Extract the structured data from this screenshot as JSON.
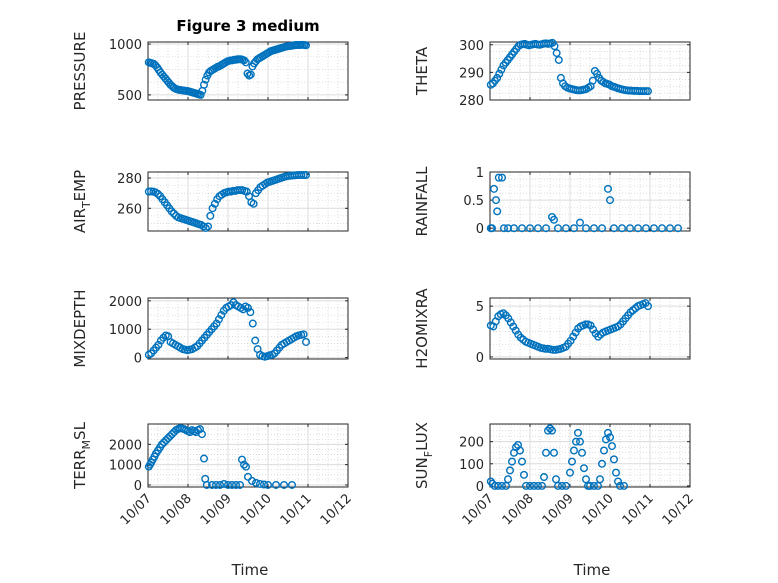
{
  "figure_title": "Figure 3 medium",
  "colors": {
    "marker": "#0072BD",
    "axis": "#262626",
    "grid": "#dcdcdc",
    "minor_grid": "#c8c8c8"
  },
  "chart_data": [
    {
      "type": "scatter",
      "id": "pressure",
      "title": "Figure 3 medium",
      "ylabel": "PRESSURE",
      "xlim": [
        0,
        5
      ],
      "ylim": [
        450,
        1020
      ],
      "yticks": [
        500,
        1000
      ],
      "y": [
        820,
        815,
        810,
        805,
        790,
        770,
        745,
        720,
        700,
        680,
        660,
        640,
        620,
        600,
        585,
        570,
        560,
        555,
        550,
        548,
        545,
        543,
        540,
        538,
        535,
        530,
        525,
        520,
        515,
        510,
        505,
        500,
        540,
        600,
        650,
        690,
        720,
        735,
        745,
        755,
        765,
        775,
        780,
        790,
        800,
        810,
        820,
        830,
        835,
        840,
        840,
        845,
        845,
        850,
        850,
        850,
        845,
        840,
        820,
        710,
        690,
        700,
        780,
        810,
        830,
        850,
        860,
        870,
        880,
        890,
        900,
        910,
        920,
        930,
        935,
        940,
        945,
        950,
        955,
        960,
        965,
        970,
        975,
        978,
        980,
        982,
        985,
        988,
        990,
        990,
        990,
        992,
        992,
        990,
        988
      ]
    },
    {
      "type": "scatter",
      "id": "theta",
      "ylabel": "THETA",
      "xlim": [
        0,
        5
      ],
      "ylim": [
        280,
        301
      ],
      "yticks": [
        280,
        290,
        300
      ],
      "y": [
        285.5,
        286,
        287,
        288,
        289.5,
        291,
        292.5,
        293.5,
        294.5,
        295.5,
        296.5,
        297.5,
        298.5,
        299.5,
        300,
        300.2,
        300.3,
        300,
        299.8,
        300,
        300.2,
        300.3,
        300.1,
        300,
        300.2,
        300.4,
        300.5,
        300.3,
        300.5,
        300.7,
        299.5,
        297,
        294.5,
        288,
        286,
        285,
        284.5,
        284.2,
        284,
        283.8,
        283.6,
        283.5,
        283.5,
        283.6,
        283.8,
        284,
        284.5,
        285,
        287,
        290.5,
        289.5,
        288,
        287,
        286.5,
        286,
        285.8,
        285.5,
        285,
        284.8,
        284.5,
        284.2,
        284,
        283.8,
        283.6,
        283.5,
        283.4,
        283.4,
        283.3,
        283.3,
        283.3,
        283.2,
        283.2,
        283.2,
        283.2,
        283.2
      ]
    },
    {
      "type": "scatter",
      "id": "air_temp",
      "ylabel": "AIR",
      "ylabel_sub": "T",
      "ylabel_suffix": "EMP",
      "xlim": [
        0,
        5
      ],
      "ylim": [
        245,
        284
      ],
      "yticks": [
        260,
        280
      ],
      "y": [
        271,
        271.2,
        271,
        270.5,
        269.5,
        268,
        266,
        264,
        262,
        260,
        258,
        256.5,
        255,
        254,
        253.5,
        253,
        252.5,
        252,
        251.5,
        251,
        250.5,
        250,
        249.5,
        249,
        248,
        247,
        248,
        255,
        260,
        263,
        266,
        268,
        269,
        270,
        270.5,
        271,
        271,
        271.5,
        271.5,
        272,
        272,
        272,
        271.5,
        271,
        268,
        264,
        263,
        270,
        272,
        274,
        275,
        276,
        277,
        277.5,
        278,
        278.5,
        279,
        279.5,
        280,
        280.5,
        281,
        281.3,
        281.5,
        281.7,
        281.8,
        281.9,
        282,
        282,
        282,
        282
      ]
    },
    {
      "type": "scatter",
      "id": "rainfall",
      "ylabel": "RAINFALL",
      "xlim": [
        0,
        5
      ],
      "ylim": [
        -0.05,
        1.0
      ],
      "yticks": [
        0,
        0.5,
        1
      ],
      "points": [
        [
          0.02,
          0
        ],
        [
          0.05,
          0
        ],
        [
          0.1,
          0.7
        ],
        [
          0.15,
          0.5
        ],
        [
          0.18,
          0.3
        ],
        [
          0.22,
          0.9
        ],
        [
          0.3,
          0.9
        ],
        [
          0.35,
          0
        ],
        [
          0.45,
          0
        ],
        [
          0.6,
          0
        ],
        [
          0.8,
          0
        ],
        [
          1.0,
          0
        ],
        [
          1.2,
          0
        ],
        [
          1.4,
          0
        ],
        [
          1.55,
          0.2
        ],
        [
          1.6,
          0.15
        ],
        [
          1.7,
          0
        ],
        [
          1.9,
          0
        ],
        [
          2.1,
          0
        ],
        [
          2.25,
          0.1
        ],
        [
          2.4,
          0
        ],
        [
          2.6,
          0
        ],
        [
          2.8,
          0
        ],
        [
          2.95,
          0.7
        ],
        [
          3.0,
          0.5
        ],
        [
          3.1,
          0
        ],
        [
          3.3,
          0
        ],
        [
          3.5,
          0
        ],
        [
          3.7,
          0
        ],
        [
          3.9,
          0
        ],
        [
          4.1,
          0
        ],
        [
          4.3,
          0
        ],
        [
          4.5,
          0
        ],
        [
          4.7,
          0
        ]
      ]
    },
    {
      "type": "scatter",
      "id": "mixdepth",
      "ylabel": "MIXDEPTH",
      "xlim": [
        0,
        5
      ],
      "ylim": [
        -50,
        2100
      ],
      "yticks": [
        0,
        1000,
        2000
      ],
      "y": [
        100,
        150,
        250,
        350,
        450,
        600,
        700,
        780,
        750,
        550,
        500,
        450,
        400,
        350,
        300,
        280,
        260,
        280,
        300,
        350,
        400,
        500,
        600,
        700,
        800,
        900,
        1000,
        1100,
        1200,
        1350,
        1500,
        1650,
        1750,
        1800,
        1850,
        1950,
        1850,
        1800,
        1750,
        1700,
        1800,
        1750,
        1600,
        1200,
        600,
        300,
        100,
        50,
        30,
        50,
        80,
        100,
        150,
        250,
        350,
        450,
        500,
        550,
        600,
        650,
        700,
        750,
        780,
        800,
        820,
        550
      ]
    },
    {
      "type": "scatter",
      "id": "h2omixra",
      "ylabel": "H2OMIXRA",
      "xlim": [
        0,
        5
      ],
      "ylim": [
        -0.2,
        5.8
      ],
      "yticks": [
        0,
        5
      ],
      "y": [
        3.1,
        3.0,
        3.5,
        4.0,
        4.2,
        4.3,
        4.1,
        3.8,
        3.4,
        3.0,
        2.6,
        2.2,
        1.9,
        1.7,
        1.5,
        1.4,
        1.3,
        1.2,
        1.1,
        1.0,
        0.9,
        0.85,
        0.8,
        0.8,
        0.75,
        0.7,
        0.7,
        0.75,
        0.8,
        0.9,
        1.0,
        1.3,
        1.6,
        2.0,
        2.4,
        2.8,
        3.0,
        3.1,
        3.2,
        3.2,
        3.1,
        2.7,
        2.3,
        2.0,
        2.2,
        2.4,
        2.5,
        2.6,
        2.7,
        2.8,
        2.9,
        3.0,
        3.2,
        3.5,
        3.8,
        4.1,
        4.4,
        4.6,
        4.8,
        5.0,
        5.1,
        5.2,
        5.3,
        5.0
      ]
    },
    {
      "type": "scatter",
      "id": "terr_msl",
      "ylabel": "TERR",
      "ylabel_sub": "M",
      "ylabel_suffix": "SL",
      "xlim": [
        0,
        5
      ],
      "ylim": [
        -100,
        3000
      ],
      "yticks": [
        0,
        1000,
        2000
      ],
      "points": [
        [
          0.02,
          900
        ],
        [
          0.05,
          1000
        ],
        [
          0.08,
          1100
        ],
        [
          0.12,
          1250
        ],
        [
          0.16,
          1400
        ],
        [
          0.2,
          1550
        ],
        [
          0.25,
          1700
        ],
        [
          0.3,
          1850
        ],
        [
          0.35,
          2000
        ],
        [
          0.4,
          2100
        ],
        [
          0.45,
          2200
        ],
        [
          0.5,
          2300
        ],
        [
          0.55,
          2400
        ],
        [
          0.6,
          2500
        ],
        [
          0.65,
          2600
        ],
        [
          0.7,
          2700
        ],
        [
          0.75,
          2750
        ],
        [
          0.8,
          2800
        ],
        [
          0.85,
          2780
        ],
        [
          0.9,
          2750
        ],
        [
          0.95,
          2700
        ],
        [
          1.0,
          2650
        ],
        [
          1.05,
          2600
        ],
        [
          1.1,
          2700
        ],
        [
          1.15,
          2650
        ],
        [
          1.2,
          2600
        ],
        [
          1.25,
          2700
        ],
        [
          1.3,
          2750
        ],
        [
          1.35,
          2500
        ],
        [
          1.4,
          1300
        ],
        [
          1.43,
          300
        ],
        [
          1.47,
          0
        ],
        [
          1.6,
          0
        ],
        [
          1.7,
          0
        ],
        [
          1.8,
          0
        ],
        [
          1.9,
          50
        ],
        [
          2.0,
          0
        ],
        [
          2.1,
          0
        ],
        [
          2.2,
          0
        ],
        [
          2.3,
          0
        ],
        [
          2.35,
          1250
        ],
        [
          2.4,
          1000
        ],
        [
          2.45,
          900
        ],
        [
          2.5,
          400
        ],
        [
          2.6,
          200
        ],
        [
          2.7,
          100
        ],
        [
          2.8,
          50
        ],
        [
          2.9,
          20
        ],
        [
          3.0,
          0
        ],
        [
          3.2,
          0
        ],
        [
          3.4,
          0
        ],
        [
          3.6,
          0
        ]
      ]
    },
    {
      "type": "scatter",
      "id": "sun_flux",
      "ylabel": "SUN",
      "ylabel_sub": "F",
      "ylabel_suffix": "LUX",
      "xlim": [
        0,
        5
      ],
      "ylim": [
        -5,
        280
      ],
      "yticks": [
        0,
        100,
        200
      ],
      "points": [
        [
          0.02,
          20
        ],
        [
          0.06,
          10
        ],
        [
          0.12,
          0
        ],
        [
          0.2,
          0
        ],
        [
          0.3,
          0
        ],
        [
          0.4,
          0
        ],
        [
          0.45,
          30
        ],
        [
          0.5,
          70
        ],
        [
          0.55,
          110
        ],
        [
          0.6,
          150
        ],
        [
          0.65,
          175
        ],
        [
          0.7,
          185
        ],
        [
          0.75,
          160
        ],
        [
          0.8,
          110
        ],
        [
          0.85,
          50
        ],
        [
          0.9,
          0
        ],
        [
          1.0,
          0
        ],
        [
          1.1,
          0
        ],
        [
          1.2,
          0
        ],
        [
          1.3,
          0
        ],
        [
          1.35,
          40
        ],
        [
          1.4,
          150
        ],
        [
          1.45,
          250
        ],
        [
          1.5,
          260
        ],
        [
          1.55,
          250
        ],
        [
          1.6,
          150
        ],
        [
          1.65,
          30
        ],
        [
          1.7,
          0
        ],
        [
          1.8,
          0
        ],
        [
          1.9,
          0
        ],
        [
          2.0,
          60
        ],
        [
          2.05,
          110
        ],
        [
          2.1,
          160
        ],
        [
          2.15,
          200
        ],
        [
          2.2,
          240
        ],
        [
          2.25,
          200
        ],
        [
          2.3,
          150
        ],
        [
          2.35,
          80
        ],
        [
          2.4,
          30
        ],
        [
          2.45,
          0
        ],
        [
          2.5,
          0
        ],
        [
          2.6,
          0
        ],
        [
          2.7,
          0
        ],
        [
          2.75,
          30
        ],
        [
          2.8,
          100
        ],
        [
          2.85,
          160
        ],
        [
          2.9,
          210
        ],
        [
          2.95,
          240
        ],
        [
          3.0,
          220
        ],
        [
          3.05,
          180
        ],
        [
          3.1,
          120
        ],
        [
          3.15,
          60
        ],
        [
          3.2,
          20
        ],
        [
          3.25,
          0
        ],
        [
          3.35,
          0
        ]
      ]
    }
  ],
  "x_axis": {
    "tick_labels": [
      "10/07",
      "10/08",
      "10/09",
      "10/10",
      "10/11",
      "10/12"
    ],
    "label": "Time"
  }
}
